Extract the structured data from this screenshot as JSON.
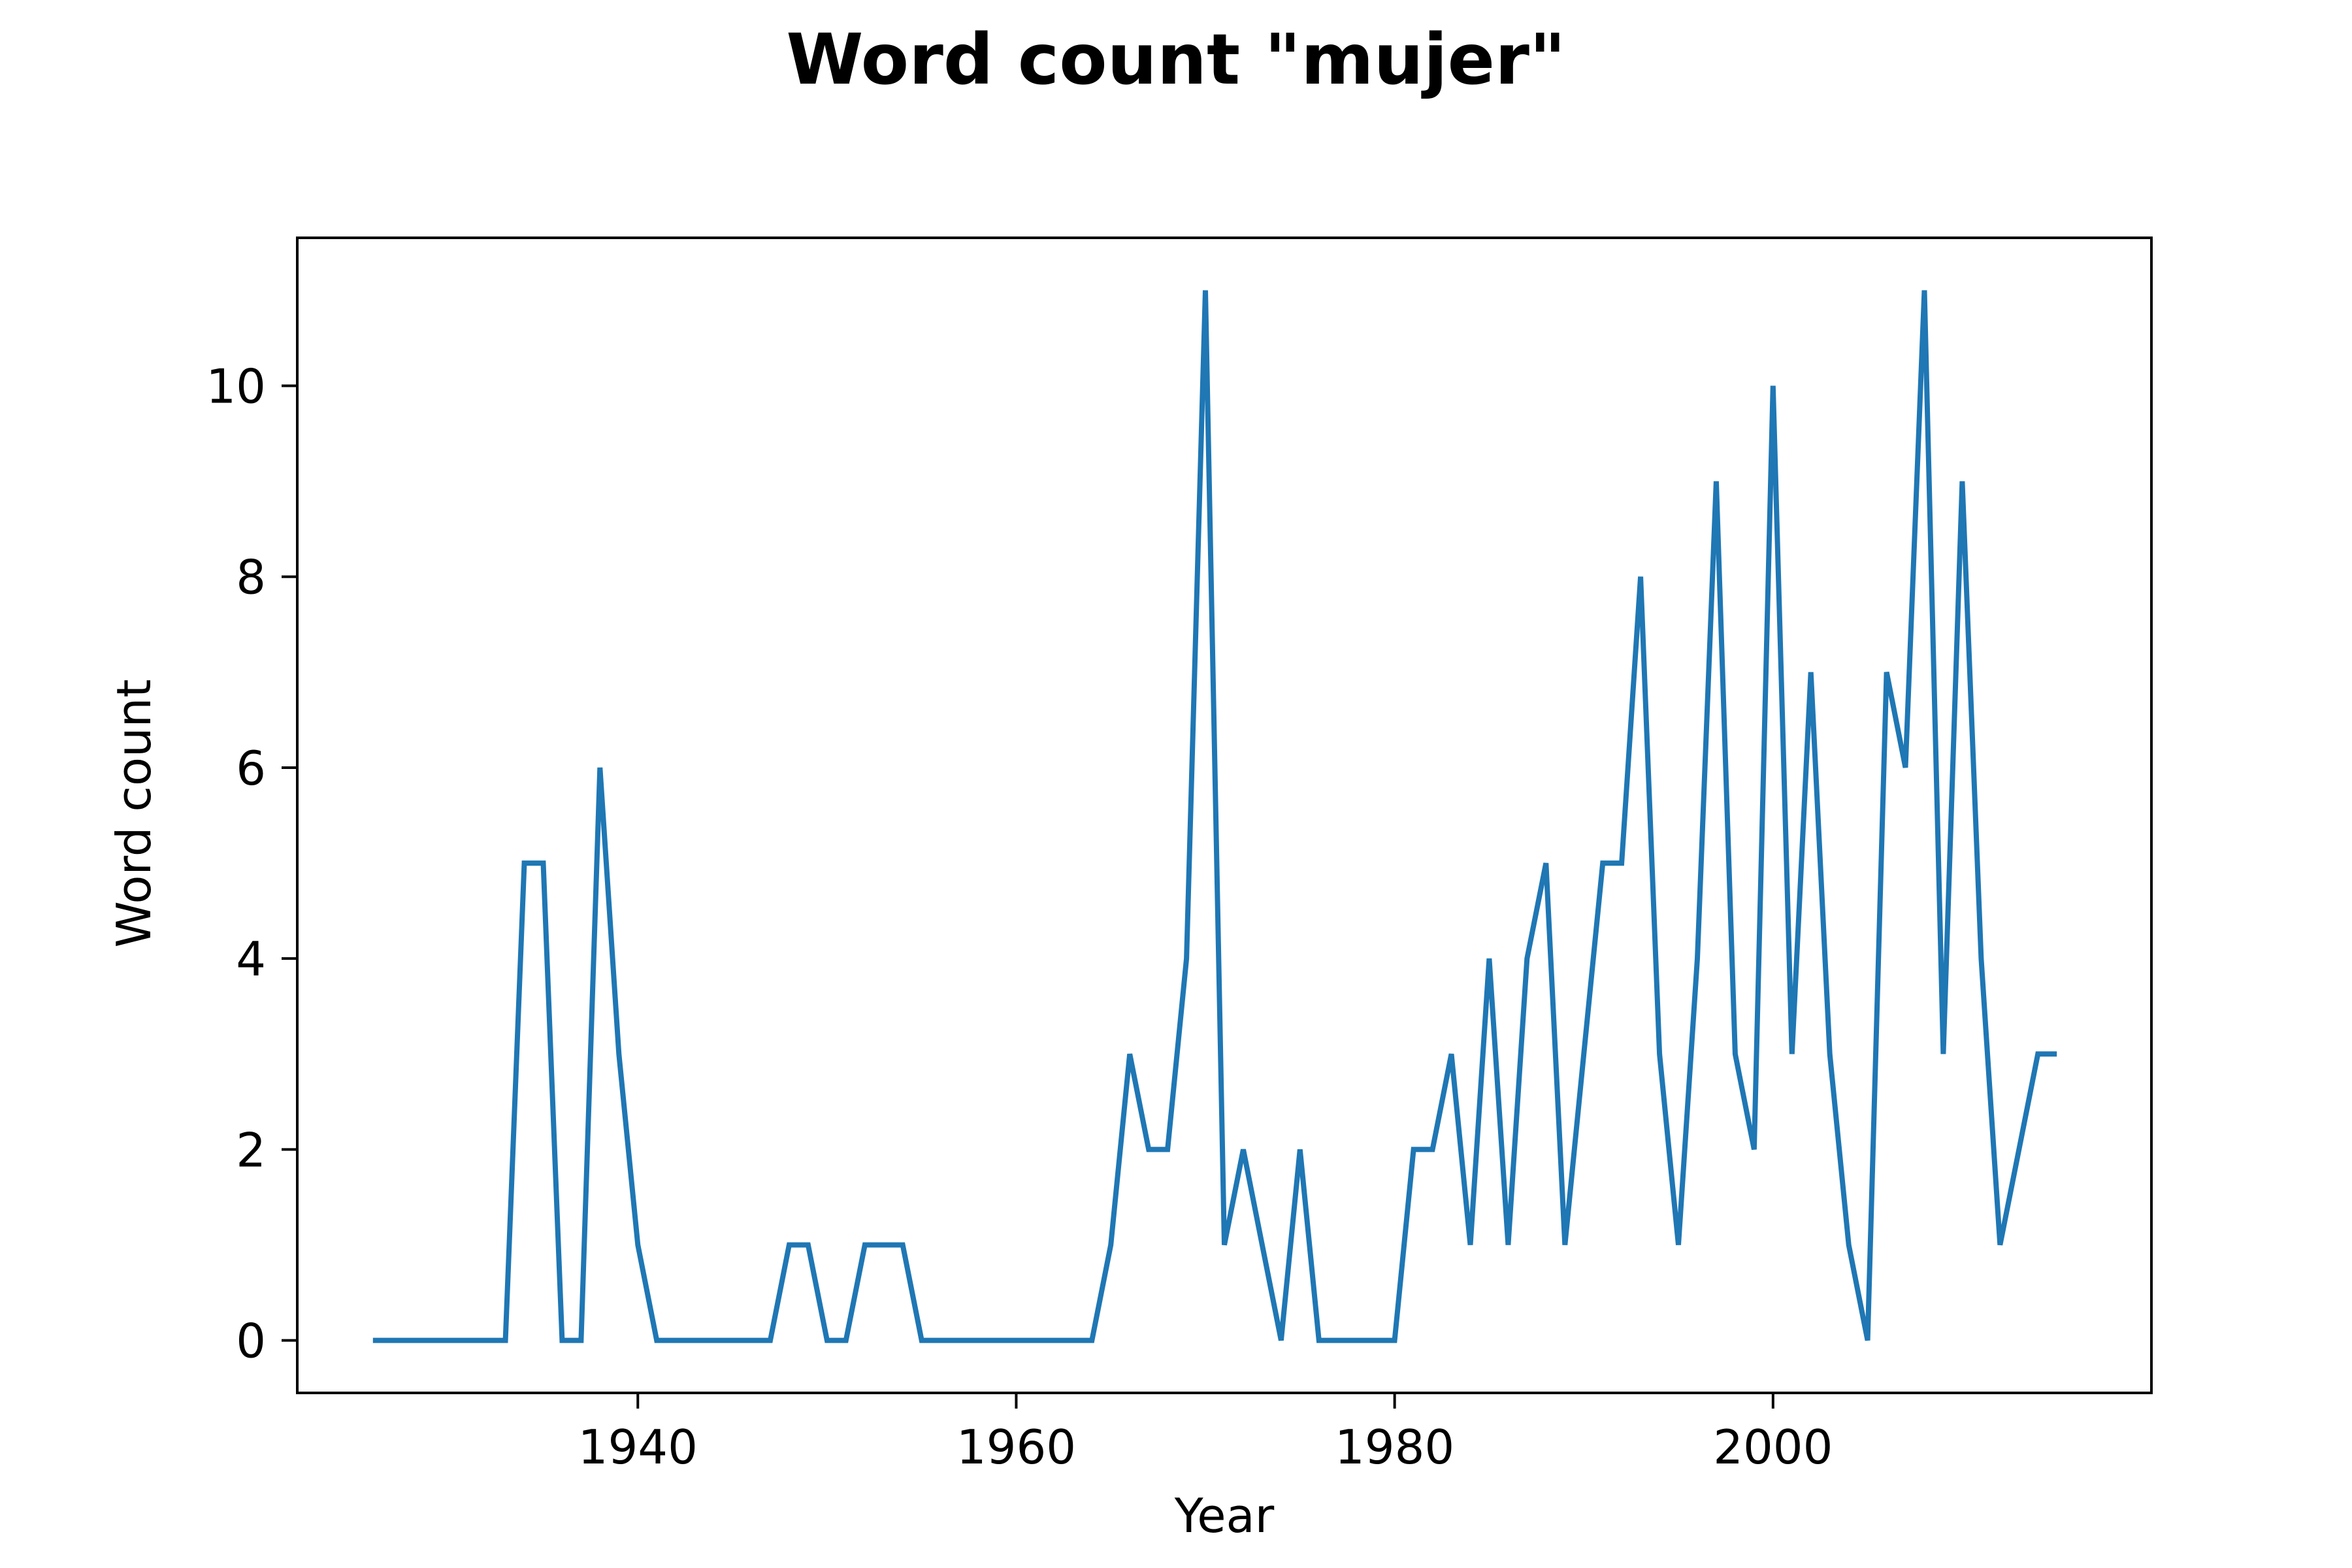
{
  "chart_data": {
    "type": "line",
    "title": "Word count \"mujer\"",
    "xlabel": "Year",
    "ylabel": "Word count",
    "xlim": [
      1922,
      2020
    ],
    "ylim": [
      -0.55,
      11.55
    ],
    "xticks": [
      1940,
      1960,
      1980,
      2000
    ],
    "yticks": [
      0,
      2,
      4,
      6,
      8,
      10
    ],
    "grid": false,
    "legend": "none",
    "colors": {
      "line": "#1f77b4",
      "axes": "#000000",
      "background": "#ffffff"
    },
    "series": [
      {
        "x": [
          1926,
          1927,
          1928,
          1929,
          1930,
          1931,
          1932,
          1933,
          1934,
          1935,
          1936,
          1937,
          1938,
          1939,
          1940,
          1941,
          1942,
          1943,
          1944,
          1945,
          1946,
          1947,
          1948,
          1949,
          1950,
          1951,
          1952,
          1953,
          1954,
          1955,
          1956,
          1957,
          1958,
          1959,
          1960,
          1961,
          1962,
          1963,
          1964,
          1965,
          1966,
          1967,
          1968,
          1969,
          1970,
          1971,
          1972,
          1973,
          1974,
          1975,
          1976,
          1977,
          1978,
          1979,
          1980,
          1981,
          1982,
          1983,
          1984,
          1985,
          1986,
          1987,
          1988,
          1989,
          1990,
          1991,
          1992,
          1993,
          1994,
          1995,
          1996,
          1997,
          1998,
          1999,
          2000,
          2001,
          2002,
          2003,
          2004,
          2005,
          2006,
          2007,
          2008,
          2009,
          2010,
          2011,
          2012,
          2013,
          2014,
          2015
        ],
        "values": [
          0,
          0,
          0,
          0,
          0,
          0,
          0,
          0,
          5,
          5,
          0,
          0,
          6,
          3,
          1,
          0,
          0,
          0,
          0,
          0,
          0,
          0,
          1,
          1,
          0,
          0,
          1,
          1,
          1,
          0,
          0,
          0,
          0,
          0,
          0,
          0,
          0,
          0,
          0,
          1,
          3,
          2,
          2,
          4,
          11,
          1,
          2,
          1,
          0,
          2,
          0,
          0,
          0,
          0,
          0,
          2,
          2,
          3,
          1,
          4,
          1,
          4,
          5,
          1,
          3,
          5,
          5,
          8,
          3,
          1,
          4,
          9,
          3,
          2,
          10,
          3,
          7,
          3,
          1,
          0,
          7,
          6,
          11,
          3,
          9,
          4,
          1,
          2,
          3,
          3
        ]
      }
    ]
  }
}
